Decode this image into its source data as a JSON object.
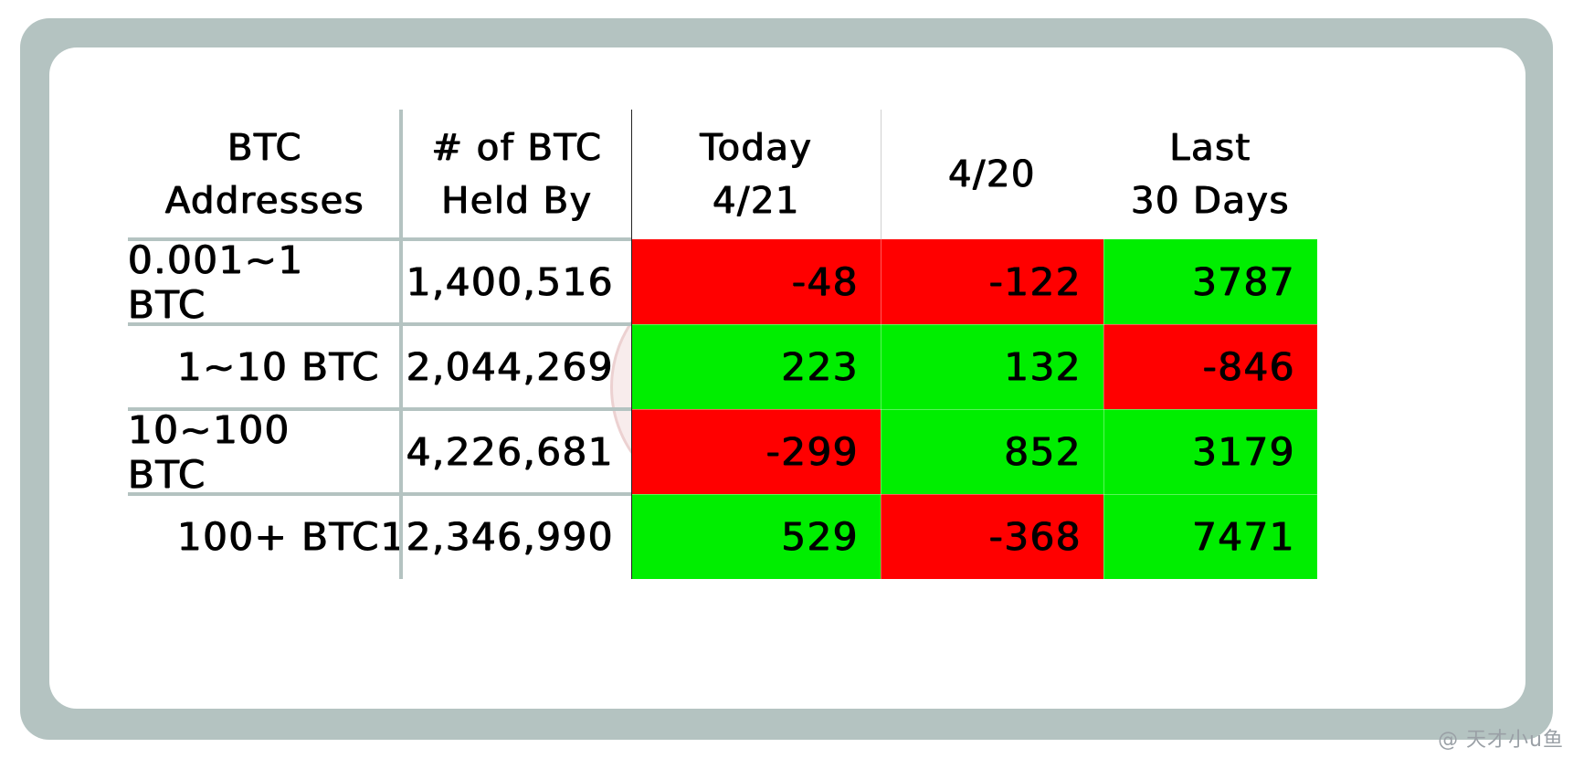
{
  "chart_data": {
    "type": "table",
    "columns": [
      "BTC\nAddresses",
      "# of BTC\nHeld By",
      "Today\n4/21",
      "4/20",
      "Last\n30 Days"
    ],
    "header_lines": [
      [
        "BTC",
        "Addresses"
      ],
      [
        "# of BTC",
        "Held By"
      ],
      [
        "Today",
        "4/21"
      ],
      [
        "4/20"
      ],
      [
        "Last",
        "30 Days"
      ]
    ],
    "rows": [
      {
        "range": "0.001~1 BTC",
        "held_by": "1,400,516",
        "today": "-48",
        "prev": "-122",
        "last30": "3787"
      },
      {
        "range": "1~10 BTC",
        "held_by": "2,044,269",
        "today": "223",
        "prev": "132",
        "last30": "-846"
      },
      {
        "range": "10~100 BTC",
        "held_by": "4,226,681",
        "today": "-299",
        "prev": "852",
        "last30": "3179"
      },
      {
        "range": "100+ BTC",
        "held_by": "12,346,990",
        "today": "529",
        "prev": "-368",
        "last30": "7471"
      }
    ]
  },
  "colors": {
    "positive": "#00ee00",
    "negative": "#ff0000",
    "frame": "#b4c3c1"
  },
  "credit": "@ 天才小u鱼"
}
